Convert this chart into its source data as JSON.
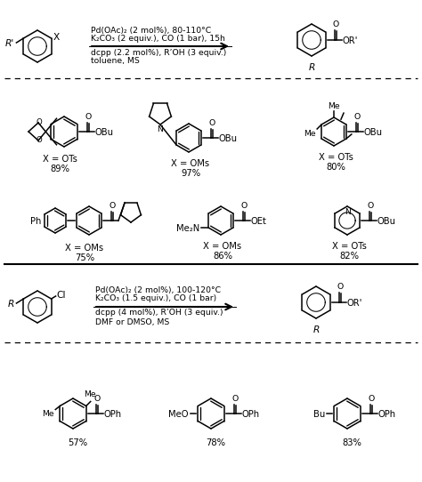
{
  "bg_color": "#ffffff",
  "fig_width": 4.74,
  "fig_height": 5.42,
  "dpi": 100,
  "reaction1": {
    "line1": "Pd(OAc)₂ (2 mol%), 80-110°C",
    "line2": "K₂CO₃ (2 equiv.), CO (1 bar), 15h",
    "line3": "dcpp (2.2 mol%), R’OH (3 equiv.)",
    "line4": "toluene, MS"
  },
  "reaction2": {
    "line1": "Pd(OAc)₂ (2 mol%), 100-120°C",
    "line2": "K₂CO₃ (1.5 equiv.), CO (1 bar)",
    "line3": "dcpp (4 mol%), R’OH (3 equiv.)",
    "line4": "DMF or DMSO, MS"
  }
}
